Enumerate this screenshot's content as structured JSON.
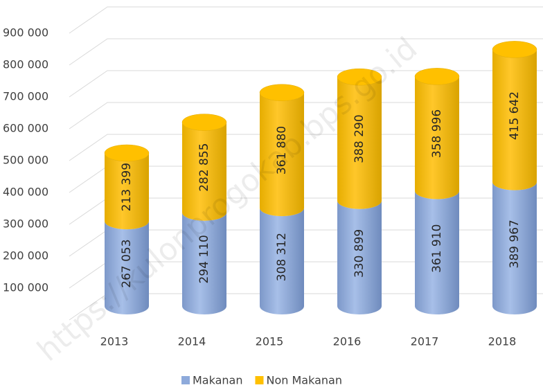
{
  "chart_data": {
    "type": "bar3d_stacked_cylinder",
    "categories": [
      "2013",
      "2014",
      "2015",
      "2016",
      "2017",
      "2018"
    ],
    "series": [
      {
        "name": "Makanan",
        "color": "#8eaadb",
        "values": [
          267053,
          294110,
          308312,
          330899,
          361910,
          389967
        ],
        "value_labels": [
          "267 053",
          "294 110",
          "308 312",
          "330 899",
          "361 910",
          "389 967"
        ]
      },
      {
        "name": "Non Makanan",
        "color": "#ffc000",
        "values": [
          213399,
          282855,
          361880,
          388290,
          358996,
          415642
        ],
        "value_labels": [
          "213 399",
          "282 855",
          "361 880",
          "388 290",
          "358 996",
          "415 642"
        ]
      }
    ],
    "ylim": [
      0,
      900000
    ],
    "yticks": [
      {
        "value": 100000,
        "label": "100 000"
      },
      {
        "value": 200000,
        "label": "200 000"
      },
      {
        "value": 300000,
        "label": "300 000"
      },
      {
        "value": 400000,
        "label": "400 000"
      },
      {
        "value": 500000,
        "label": "500 000"
      },
      {
        "value": 600000,
        "label": "600 000"
      },
      {
        "value": 700000,
        "label": "700 000"
      },
      {
        "value": 800000,
        "label": "800 000"
      },
      {
        "value": 900000,
        "label": "900 000"
      }
    ],
    "grid": true,
    "legend": "bottom"
  },
  "watermark": "https://kulonprogokab.bps.go.id"
}
